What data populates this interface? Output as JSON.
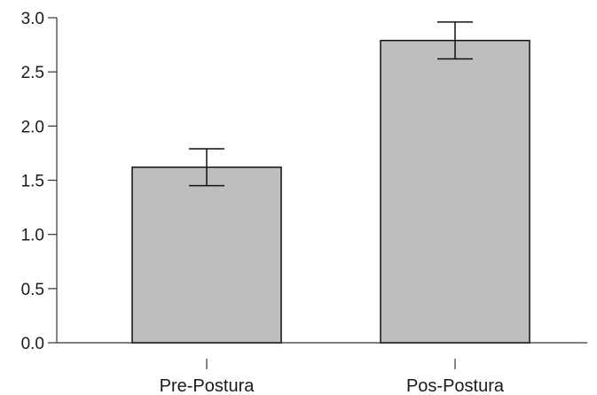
{
  "chart_data": {
    "type": "bar",
    "categories": [
      "Pre-Postura",
      "Pos-Postura"
    ],
    "values": [
      1.62,
      2.79
    ],
    "error_low": [
      1.45,
      2.62
    ],
    "error_high": [
      1.79,
      2.96
    ],
    "title": "",
    "xlabel": "",
    "ylabel": "",
    "ylim": [
      0,
      3
    ],
    "yticks": [
      0,
      0.5,
      1,
      1.5,
      2,
      2.5,
      3
    ],
    "ytick_labels": [
      "0.0",
      "0.5",
      "1.0",
      "1.5",
      "2.0",
      "2.5",
      "3.0"
    ],
    "grid": false,
    "legend": "none",
    "bar_color": "#bebebe",
    "edge_color": "#111111"
  }
}
